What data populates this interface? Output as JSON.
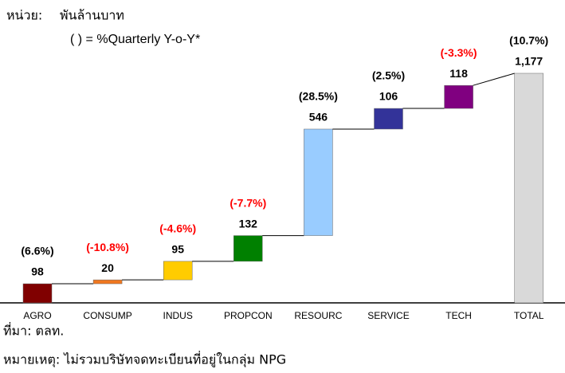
{
  "chart_data": {
    "type": "waterfall",
    "unit_label": "หน่วย:",
    "unit": "พันล้านบาท",
    "subtitle": "( ) = %Quarterly Y-o-Y*",
    "categories": [
      "AGRO",
      "CONSUMP",
      "INDUS",
      "PROPCON",
      "RESOURC",
      "SERVICE",
      "TECH",
      "TOTAL"
    ],
    "values": [
      98,
      20,
      95,
      132,
      546,
      106,
      118,
      1177
    ],
    "value_labels": [
      "98",
      "20",
      "95",
      "132",
      "546",
      "106",
      "118",
      "1,177"
    ],
    "colors": [
      "#800000",
      "#f07820",
      "#ffcc00",
      "#008000",
      "#99ccff",
      "#333399",
      "#800080",
      "#d9d9d9"
    ],
    "change_labels": [
      "(6.6%)",
      "(-10.8%)",
      "(-4.6%)",
      "(-7.7%)",
      "(28.5%)",
      "(2.5%)",
      "(-3.3%)",
      "(10.7%)"
    ],
    "change_colors": [
      "#000000",
      "#ff0000",
      "#ff0000",
      "#ff0000",
      "#000000",
      "#000000",
      "#ff0000",
      "#000000"
    ],
    "source": "ที่มา: ตลท.",
    "note": "หมายเหตุ: ไม่รวมบริษัทจดทะเบียนที่อยู่ในกลุ่ม NPG"
  }
}
